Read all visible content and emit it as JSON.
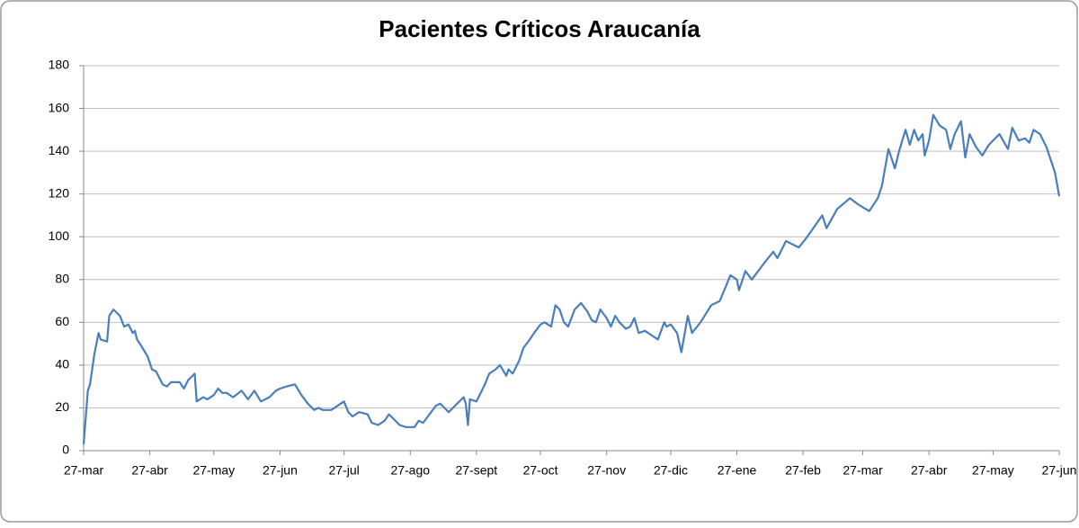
{
  "chart_data": {
    "type": "line",
    "title": "Pacientes Críticos Araucanía",
    "color": "#4a7ebb",
    "grid": true,
    "x": [
      0,
      2,
      3,
      5,
      7,
      8,
      11,
      12,
      14,
      17,
      19,
      21,
      23,
      24,
      25,
      27,
      30,
      32,
      34,
      37,
      39,
      41,
      45,
      47,
      49,
      52,
      53,
      56,
      58,
      61,
      63,
      65,
      67,
      70,
      74,
      77,
      80,
      83,
      87,
      90,
      92,
      95,
      99,
      102,
      105,
      108,
      110,
      112,
      116,
      119,
      122,
      124,
      126,
      129,
      133,
      135,
      138,
      141,
      143,
      145,
      148,
      151,
      155,
      157,
      159,
      162,
      165,
      167,
      169,
      171,
      175,
      178,
      179,
      180,
      181,
      184,
      186,
      188,
      190,
      193,
      195,
      198,
      199,
      201,
      204,
      206,
      209,
      211,
      214,
      216,
      219,
      221,
      223,
      225,
      227,
      230,
      233,
      236,
      238,
      240,
      242,
      245,
      247,
      249,
      251,
      254,
      256,
      258,
      260,
      263,
      266,
      269,
      272,
      273,
      275,
      278,
      280,
      283,
      285,
      289,
      294,
      298,
      303,
      306,
      307,
      310,
      313,
      319,
      323,
      325,
      329,
      335,
      339,
      346,
      348,
      353,
      359,
      363,
      368,
      372,
      374,
      377,
      380,
      382,
      385,
      387,
      389,
      391,
      393,
      394,
      396,
      398,
      401,
      404,
      406,
      408,
      411,
      413,
      415,
      418,
      421,
      424,
      429,
      433,
      435,
      438,
      441,
      443,
      445,
      448,
      451,
      455,
      457
    ],
    "values": [
      3,
      28,
      31,
      45,
      55,
      52,
      51,
      63,
      66,
      63,
      58,
      59,
      55,
      56,
      52,
      49,
      44,
      38,
      37,
      31,
      30,
      32,
      32,
      29,
      33,
      36,
      23,
      25,
      24,
      26,
      29,
      27,
      27,
      25,
      28,
      24,
      28,
      23,
      25,
      28,
      29,
      30,
      31,
      26,
      22,
      19,
      20,
      19,
      19,
      21,
      23,
      18,
      16,
      18,
      17,
      13,
      12,
      14,
      17,
      15,
      12,
      11,
      11,
      14,
      13,
      17,
      21,
      22,
      20,
      18,
      22,
      25,
      22,
      12,
      24,
      23,
      27,
      31,
      36,
      38,
      40,
      35,
      38,
      36,
      42,
      48,
      52,
      55,
      59,
      60,
      58,
      68,
      66,
      60,
      58,
      66,
      69,
      65,
      61,
      60,
      66,
      62,
      58,
      63,
      60,
      57,
      58,
      62,
      55,
      56,
      54,
      52,
      60,
      58,
      59,
      55,
      46,
      63,
      55,
      60,
      68,
      70,
      82,
      80,
      75,
      84,
      80,
      88,
      93,
      90,
      98,
      95,
      100,
      110,
      104,
      113,
      118,
      115,
      112,
      118,
      124,
      141,
      132,
      140,
      150,
      143,
      150,
      145,
      148,
      138,
      145,
      157,
      152,
      150,
      141,
      148,
      154,
      137,
      148,
      142,
      138,
      143,
      148,
      141,
      151,
      145,
      146,
      144,
      150,
      148,
      142,
      130,
      119
    ],
    "xlim": [
      0,
      457
    ],
    "xticks": [
      {
        "value": 0,
        "label": "27-mar"
      },
      {
        "value": 31,
        "label": "27-abr"
      },
      {
        "value": 61,
        "label": "27-may"
      },
      {
        "value": 92,
        "label": "27-jun"
      },
      {
        "value": 122,
        "label": "27-jul"
      },
      {
        "value": 153,
        "label": "27-ago"
      },
      {
        "value": 184,
        "label": "27-sept"
      },
      {
        "value": 214,
        "label": "27-oct"
      },
      {
        "value": 245,
        "label": "27-nov"
      },
      {
        "value": 275,
        "label": "27-dic"
      },
      {
        "value": 306,
        "label": "27-ene"
      },
      {
        "value": 337,
        "label": "27-feb"
      },
      {
        "value": 365,
        "label": "27-mar"
      },
      {
        "value": 396,
        "label": "27-abr"
      },
      {
        "value": 426,
        "label": "27-may"
      },
      {
        "value": 457,
        "label": "27-jun"
      }
    ],
    "ylim": [
      0,
      180
    ],
    "yticks": [
      0,
      20,
      40,
      60,
      80,
      100,
      120,
      140,
      160,
      180
    ]
  }
}
